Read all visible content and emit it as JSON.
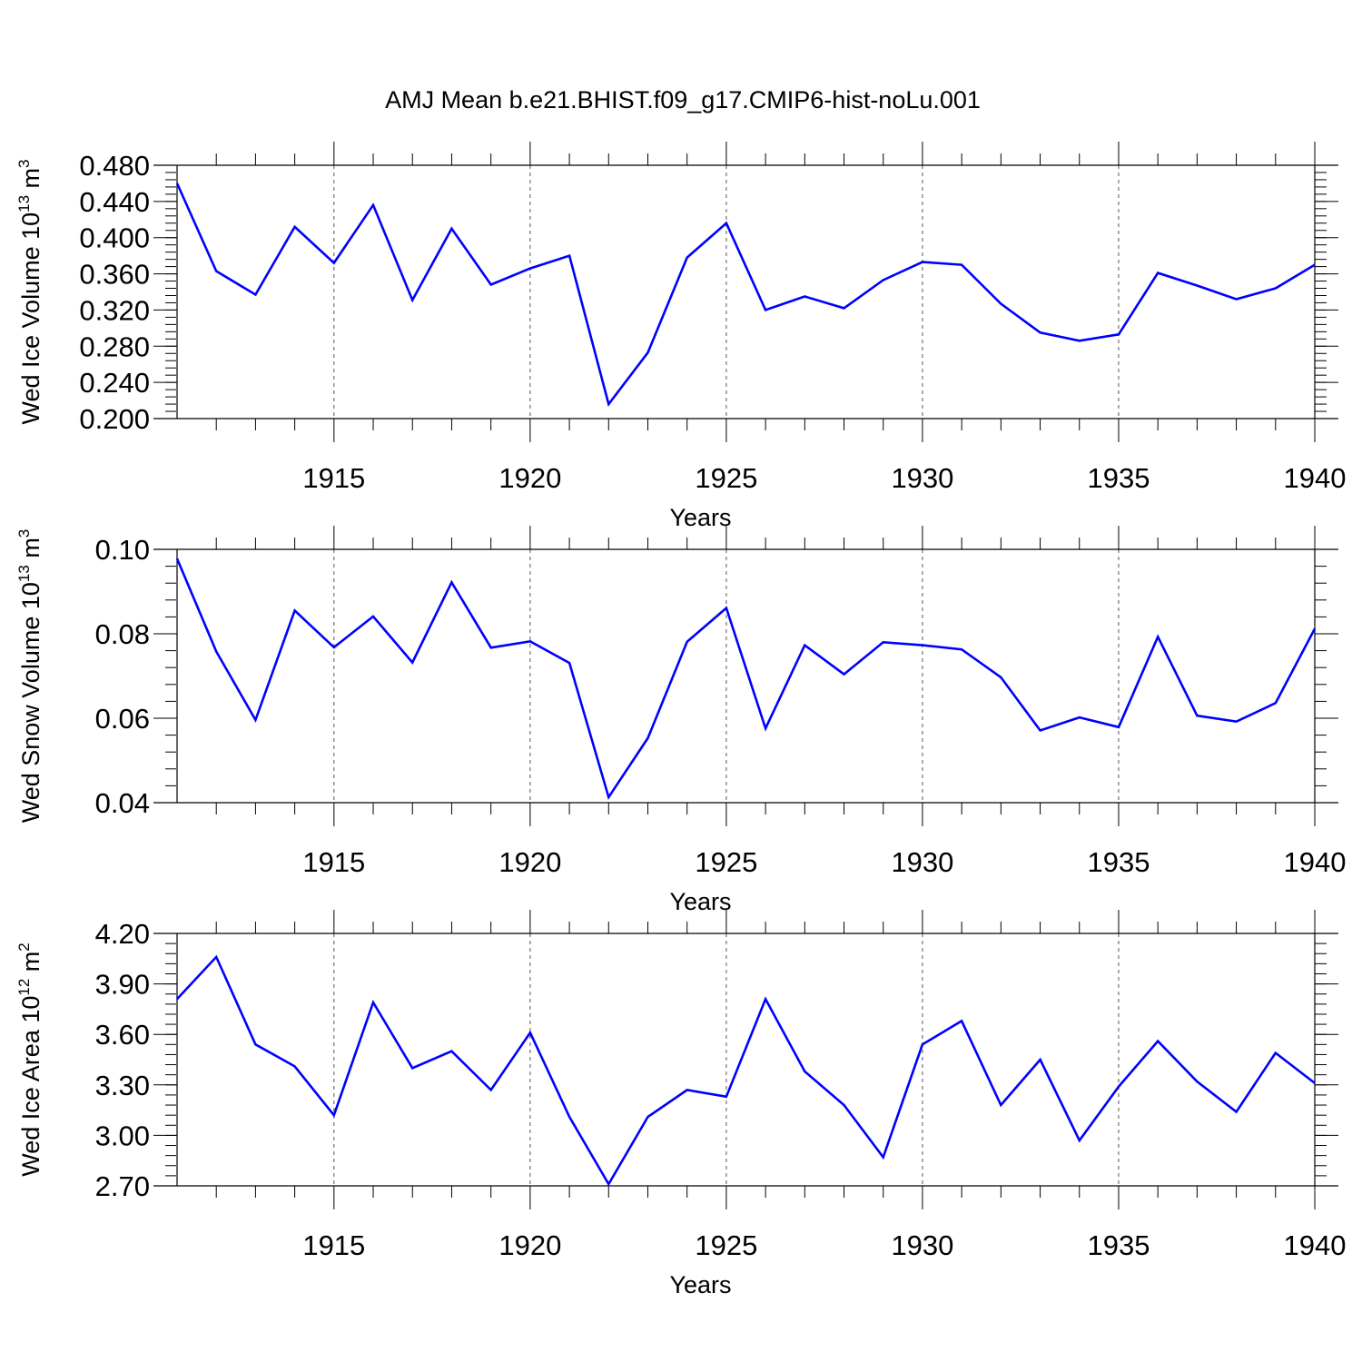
{
  "figure": {
    "title": "AMJ Mean b.e21.BHIST.f09_g17.CMIP6-hist-noLu.001",
    "line_color": "#0000ff",
    "grid_line_color": "#555555"
  },
  "chart_data": [
    {
      "type": "line",
      "title": "",
      "xlabel": "Years",
      "ylabel": "Wed Ice Volume 10",
      "ylabel_exp": "13",
      "ylabel_unit": "m",
      "ylabel_unit_exp": "3",
      "xlim": [
        1911,
        1940
      ],
      "ylim": [
        0.2,
        0.48
      ],
      "xticks": [
        1915,
        1920,
        1925,
        1930,
        1935,
        1940
      ],
      "xtick_labels": [
        "1915",
        "1920",
        "1925",
        "1930",
        "1935",
        "1940"
      ],
      "yticks": [
        0.2,
        0.24,
        0.28,
        0.32,
        0.36,
        0.4,
        0.44,
        0.48
      ],
      "ytick_labels": [
        "0.200",
        "0.240",
        "0.280",
        "0.320",
        "0.360",
        "0.400",
        "0.440",
        "0.480"
      ],
      "y_minor_step": 0.008,
      "grid": "vertical dashed at major x ticks",
      "x": [
        1911,
        1912,
        1913,
        1914,
        1915,
        1916,
        1917,
        1918,
        1919,
        1920,
        1921,
        1922,
        1923,
        1924,
        1925,
        1926,
        1927,
        1928,
        1929,
        1930,
        1931,
        1932,
        1933,
        1934,
        1935,
        1936,
        1937,
        1938,
        1939,
        1940
      ],
      "series": [
        {
          "values": [
            0.46,
            0.363,
            0.337,
            0.412,
            0.372,
            0.436,
            0.331,
            0.41,
            0.348,
            0.366,
            0.38,
            0.216,
            0.273,
            0.378,
            0.416,
            0.32,
            0.335,
            0.322,
            0.353,
            0.373,
            0.37,
            0.327,
            0.295,
            0.286,
            0.293,
            0.361,
            0.347,
            0.332,
            0.344,
            0.37
          ]
        }
      ]
    },
    {
      "type": "line",
      "title": "",
      "xlabel": "Years",
      "ylabel": "Wed Snow Volume 10",
      "ylabel_exp": "13",
      "ylabel_unit": "m",
      "ylabel_unit_exp": "3",
      "xlim": [
        1911,
        1940
      ],
      "ylim": [
        0.04,
        0.1
      ],
      "xticks": [
        1915,
        1920,
        1925,
        1930,
        1935,
        1940
      ],
      "xtick_labels": [
        "1915",
        "1920",
        "1925",
        "1930",
        "1935",
        "1940"
      ],
      "yticks": [
        0.04,
        0.06,
        0.08,
        0.1
      ],
      "ytick_labels": [
        "0.04",
        "0.06",
        "0.08",
        "0.10"
      ],
      "y_minor_step": 0.004,
      "grid": "vertical dashed at major x ticks",
      "x": [
        1911,
        1912,
        1913,
        1914,
        1915,
        1916,
        1917,
        1918,
        1919,
        1920,
        1921,
        1922,
        1923,
        1924,
        1925,
        1926,
        1927,
        1928,
        1929,
        1930,
        1931,
        1932,
        1933,
        1934,
        1935,
        1936,
        1937,
        1938,
        1939,
        1940
      ],
      "series": [
        {
          "values": [
            0.0978,
            0.0758,
            0.0596,
            0.0855,
            0.0768,
            0.0841,
            0.0732,
            0.0922,
            0.0767,
            0.0782,
            0.0731,
            0.0413,
            0.0553,
            0.0781,
            0.0861,
            0.0576,
            0.0773,
            0.0704,
            0.078,
            0.0773,
            0.0763,
            0.0697,
            0.0571,
            0.0602,
            0.0579,
            0.0793,
            0.0606,
            0.0592,
            0.0636,
            0.0812
          ]
        }
      ]
    },
    {
      "type": "line",
      "title": "",
      "xlabel": "Years",
      "ylabel": "Wed Ice Area 10",
      "ylabel_exp": "12",
      "ylabel_unit": "m",
      "ylabel_unit_exp": "2",
      "xlim": [
        1911,
        1940
      ],
      "ylim": [
        2.7,
        4.2
      ],
      "xticks": [
        1915,
        1920,
        1925,
        1930,
        1935,
        1940
      ],
      "xtick_labels": [
        "1915",
        "1920",
        "1925",
        "1930",
        "1935",
        "1940"
      ],
      "yticks": [
        2.7,
        3.0,
        3.3,
        3.6,
        3.9,
        4.2
      ],
      "ytick_labels": [
        "2.70",
        "3.00",
        "3.30",
        "3.60",
        "3.90",
        "4.20"
      ],
      "y_minor_step": 0.06,
      "grid": "vertical dashed at major x ticks",
      "x": [
        1911,
        1912,
        1913,
        1914,
        1915,
        1916,
        1917,
        1918,
        1919,
        1920,
        1921,
        1922,
        1923,
        1924,
        1925,
        1926,
        1927,
        1928,
        1929,
        1930,
        1931,
        1932,
        1933,
        1934,
        1935,
        1936,
        1937,
        1938,
        1939,
        1940
      ],
      "series": [
        {
          "values": [
            3.81,
            4.06,
            3.54,
            3.41,
            3.12,
            3.79,
            3.4,
            3.5,
            3.27,
            3.61,
            3.11,
            2.71,
            3.11,
            3.27,
            3.23,
            3.81,
            3.38,
            3.18,
            2.87,
            3.54,
            3.68,
            3.18,
            3.45,
            2.97,
            3.29,
            3.56,
            3.32,
            3.14,
            3.49,
            3.31
          ]
        }
      ]
    }
  ]
}
